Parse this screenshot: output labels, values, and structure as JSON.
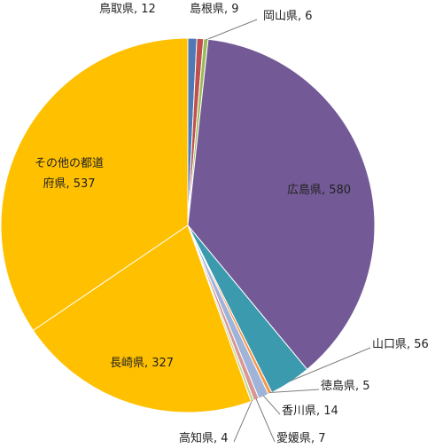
{
  "chart_data": {
    "type": "pie",
    "title": "",
    "slices": [
      {
        "label": "鳥取県",
        "value": 12,
        "text": "鳥取県, 12",
        "color": "#4e79b5"
      },
      {
        "label": "島根県",
        "value": 9,
        "text": "島根県, 9",
        "color": "#c0504d"
      },
      {
        "label": "岡山県",
        "value": 6,
        "text": "岡山県, 6",
        "color": "#9bbb59"
      },
      {
        "label": "広島県",
        "value": 580,
        "text": "広島県, 580",
        "color": "#735a96"
      },
      {
        "label": "山口県",
        "value": 56,
        "text": "山口県, 56",
        "color": "#3b9aae"
      },
      {
        "label": "徳島県",
        "value": 5,
        "text": "徳島県, 5",
        "color": "#f79646"
      },
      {
        "label": "香川県",
        "value": 14,
        "text": "香川県, 14",
        "color": "#9fb4d8"
      },
      {
        "label": "愛媛県",
        "value": 7,
        "text": "愛媛県, 7",
        "color": "#d99694"
      },
      {
        "label": "高知県",
        "value": 4,
        "text": "高知県, 4",
        "color": "#c3d69b"
      },
      {
        "label": "長崎県",
        "value": 327,
        "text": "長崎県, 327",
        "color": "#ffc000"
      },
      {
        "label": "その他の都道府県",
        "value": 537,
        "text_lines": [
          "その他の都道",
          "府県, 537"
        ],
        "color": "#ffc000"
      }
    ]
  }
}
